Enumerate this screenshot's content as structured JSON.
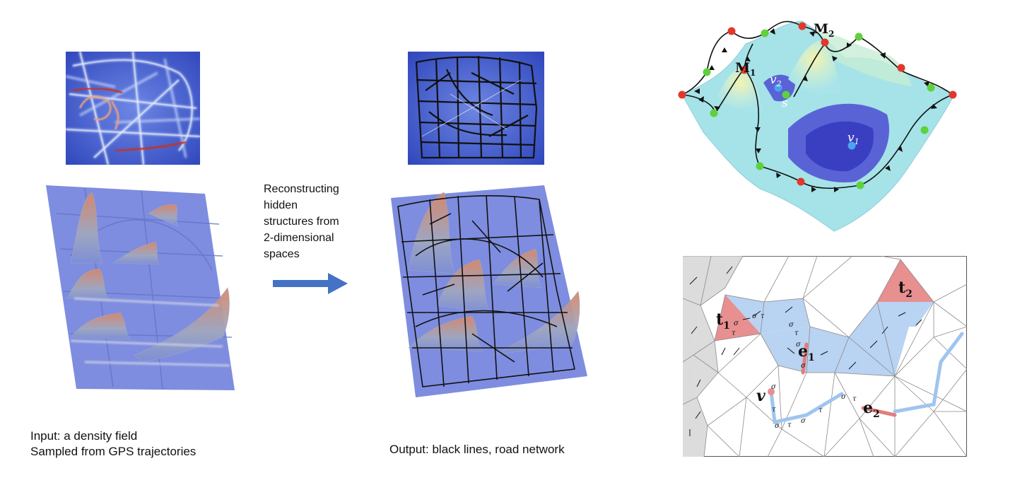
{
  "middle": {
    "lines": [
      "Reconstructing",
      "hidden",
      "structures from",
      "2-dimensional",
      "spaces"
    ]
  },
  "input_caption": {
    "line1": "Input: a density field",
    "line2": "Sampled from GPS trajectories"
  },
  "output_caption": {
    "line1": "Output: black lines, road network"
  },
  "morse": {
    "max1": {
      "base": "M",
      "sub": "1"
    },
    "max2": {
      "base": "M",
      "sub": "2"
    },
    "min1": {
      "base": "v",
      "sub": "1"
    },
    "min2": {
      "base": "v",
      "sub": "2"
    },
    "saddle": "s"
  },
  "mesh": {
    "t1": {
      "base": "t",
      "sub": "1"
    },
    "t2": {
      "base": "t",
      "sub": "2"
    },
    "e1": {
      "base": "e",
      "sub": "1"
    },
    "e2": {
      "base": "e",
      "sub": "2"
    },
    "v": "v",
    "sigma": "σ",
    "tau": "τ"
  },
  "colors": {
    "arrow": "#4472c4",
    "density_bg": "#3b56c8",
    "critical_max": "#e0392b",
    "critical_saddle": "#5fd13a",
    "minimum": "#4da3f0",
    "highlight_red": "#e88f8f",
    "highlight_blue": "#b9d3f2"
  }
}
